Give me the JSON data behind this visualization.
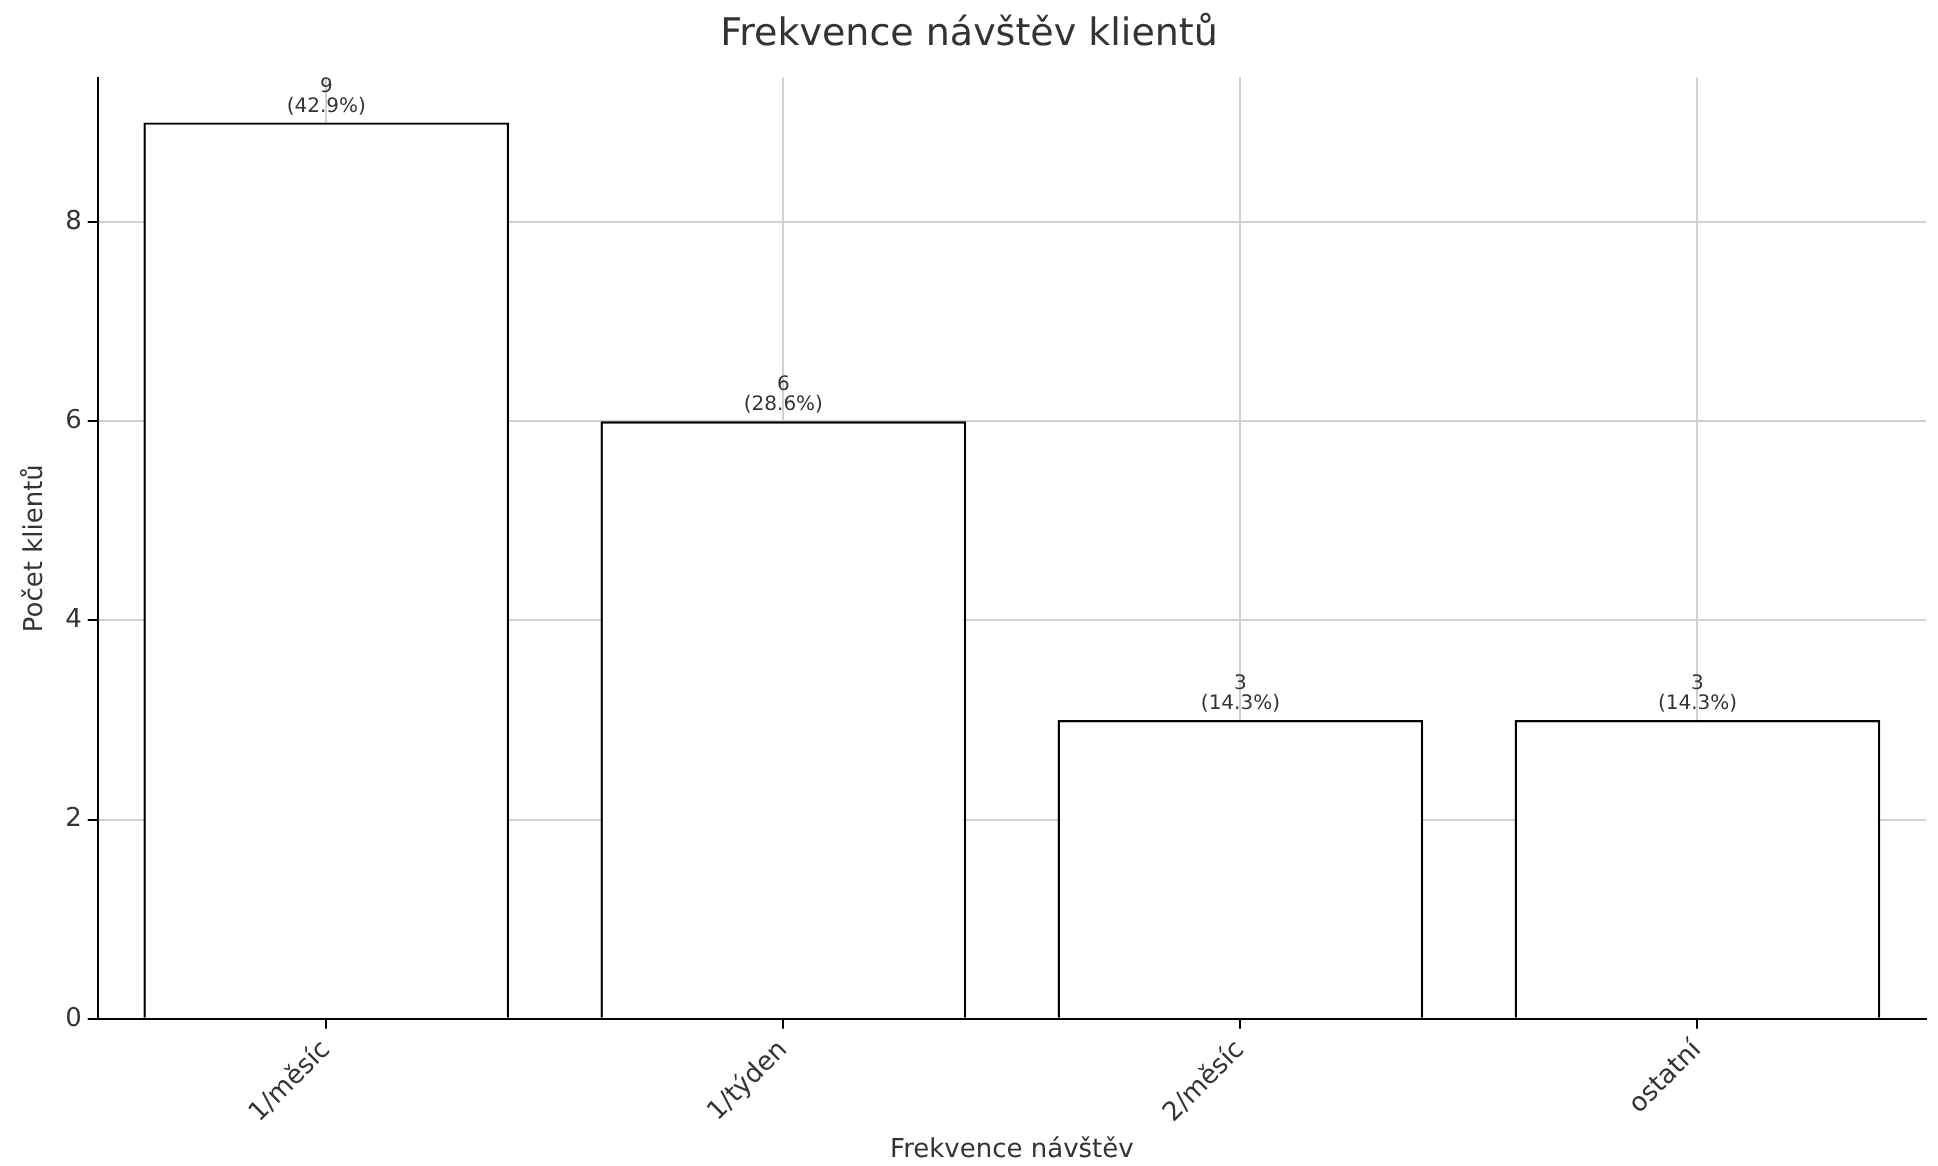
{
  "chart_data": {
    "type": "bar",
    "title": "Frekvence návštěv klientů",
    "xlabel": "Frekvence návštěv",
    "ylabel": "Počet klientů",
    "categories": [
      "1/měsíc",
      "1/týden",
      "2/měsíc",
      "ostatní"
    ],
    "values": [
      9,
      6,
      3,
      3
    ],
    "color": "#ffffff",
    "value_labels": [
      "9\n(42.9%)",
      "6\n(28.6%)",
      "3\n(14.3%)",
      "3\n(14.3%)"
    ],
    "ylim": [
      0,
      9.45
    ],
    "yticks": [
      0,
      2,
      4,
      6,
      8
    ],
    "grid": true,
    "legend": false
  }
}
